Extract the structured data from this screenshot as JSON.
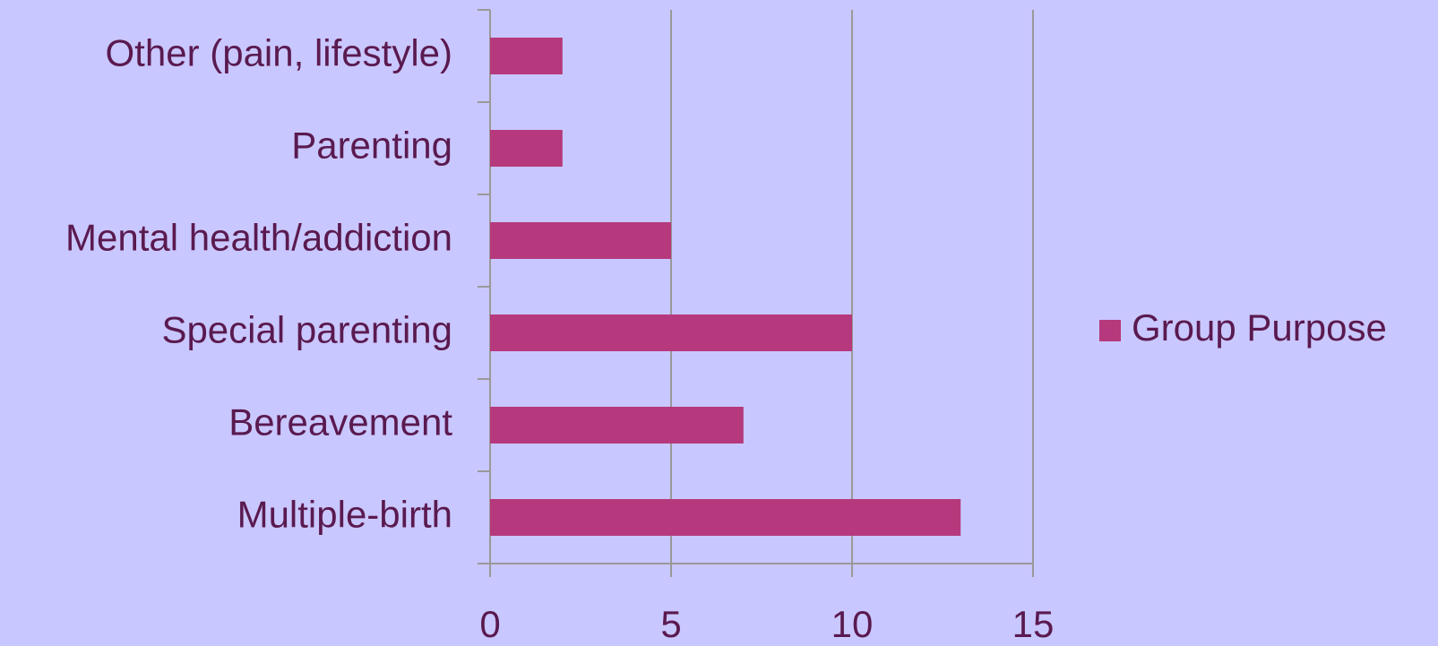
{
  "chart_data": {
    "type": "hbar",
    "categories": [
      "Multiple-birth",
      "Bereavement",
      "Special parenting",
      "Mental health/addiction",
      "Parenting",
      "Other (pain, lifestyle)"
    ],
    "series": [
      {
        "name": "Group Purpose",
        "color": "#b5397c",
        "values": [
          13,
          7,
          10,
          5,
          2,
          2
        ]
      }
    ],
    "xlim": [
      0,
      15
    ],
    "xticks": [
      0,
      5,
      10,
      15
    ],
    "grid": true,
    "legend": "right"
  }
}
